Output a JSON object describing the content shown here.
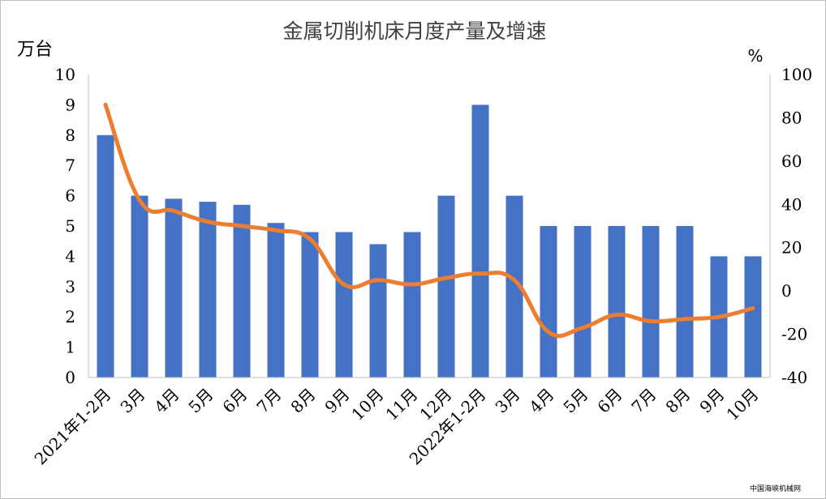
{
  "chart_data": {
    "type": "bar+line",
    "title": "金属切削机床月度产量及增速",
    "y_left_unit": "万台",
    "y_right_unit": "%",
    "ylim_left": [
      0,
      10
    ],
    "ylim_right": [
      -40,
      100
    ],
    "y_left_ticks": [
      "0",
      "1",
      "2",
      "3",
      "4",
      "5",
      "6",
      "7",
      "8",
      "9",
      "10"
    ],
    "y_right_ticks": [
      "-40",
      "-20",
      "0",
      "20",
      "40",
      "60",
      "80",
      "100"
    ],
    "categories": [
      "2021年1-2月",
      "3月",
      "4月",
      "5月",
      "6月",
      "7月",
      "8月",
      "9月",
      "10月",
      "11月",
      "12月",
      "2022年1-2月",
      "3月",
      "4月",
      "5月",
      "6月",
      "7月",
      "8月",
      "9月",
      "10月"
    ],
    "series": [
      {
        "type": "bar",
        "axis": "left",
        "color": "#4472c4",
        "values": [
          8,
          6,
          5.9,
          5.8,
          5.7,
          5.1,
          4.8,
          4.8,
          4.4,
          4.8,
          6,
          9,
          6,
          5,
          5,
          5,
          5,
          5,
          4,
          4
        ]
      },
      {
        "type": "line",
        "axis": "right",
        "color": "#ed7d31",
        "values": [
          86,
          42,
          37,
          32,
          30,
          28,
          24,
          3,
          5,
          3,
          6,
          8,
          5,
          -19,
          -17,
          -11,
          -14,
          -13,
          -12,
          -8
        ]
      }
    ],
    "grid": false,
    "legend": "none"
  },
  "watermark": "中国海峡机械网"
}
